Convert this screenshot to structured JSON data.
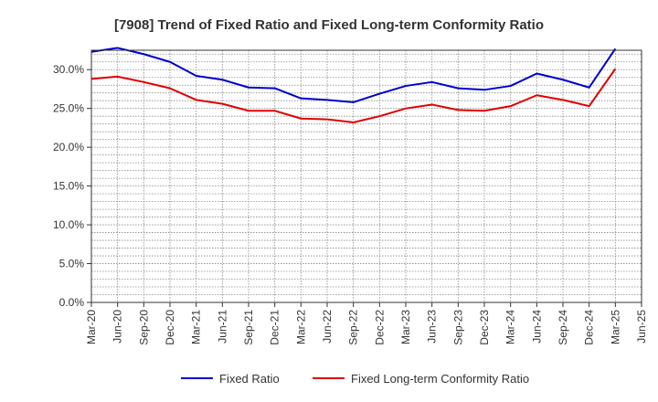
{
  "chart_data": {
    "type": "line",
    "title": "[7908]  Trend of Fixed Ratio and Fixed Long-term Conformity Ratio",
    "xlabel": "",
    "ylabel": "",
    "x": [
      "Mar-20",
      "Jun-20",
      "Sep-20",
      "Dec-20",
      "Mar-21",
      "Jun-21",
      "Sep-21",
      "Dec-21",
      "Mar-22",
      "Jun-22",
      "Sep-22",
      "Dec-22",
      "Mar-23",
      "Jun-23",
      "Sep-23",
      "Dec-23",
      "Mar-24",
      "Jun-24",
      "Sep-24",
      "Dec-24",
      "Mar-25",
      "Jun-25"
    ],
    "ylim": [
      0,
      32.5
    ],
    "yticks": [
      "0.0%",
      "5.0%",
      "10.0%",
      "15.0%",
      "20.0%",
      "25.0%",
      "30.0%"
    ],
    "ytick_values": [
      0,
      5,
      10,
      15,
      20,
      25,
      30
    ],
    "grid": true,
    "legend_position": "bottom",
    "series": [
      {
        "name": "Fixed Ratio",
        "color": "#0000cc",
        "values": [
          32.3,
          32.8,
          32.0,
          31.0,
          29.2,
          28.7,
          27.7,
          27.6,
          26.3,
          26.1,
          25.8,
          26.9,
          27.9,
          28.4,
          27.6,
          27.4,
          27.9,
          29.5,
          28.7,
          27.7,
          32.7,
          null
        ]
      },
      {
        "name": "Fixed Long-term Conformity Ratio",
        "color": "#e00000",
        "values": [
          28.8,
          29.1,
          28.4,
          27.6,
          26.1,
          25.6,
          24.7,
          24.7,
          23.7,
          23.6,
          23.2,
          24.0,
          25.0,
          25.5,
          24.8,
          24.7,
          25.3,
          26.7,
          26.1,
          25.3,
          30.1,
          null
        ]
      }
    ]
  }
}
